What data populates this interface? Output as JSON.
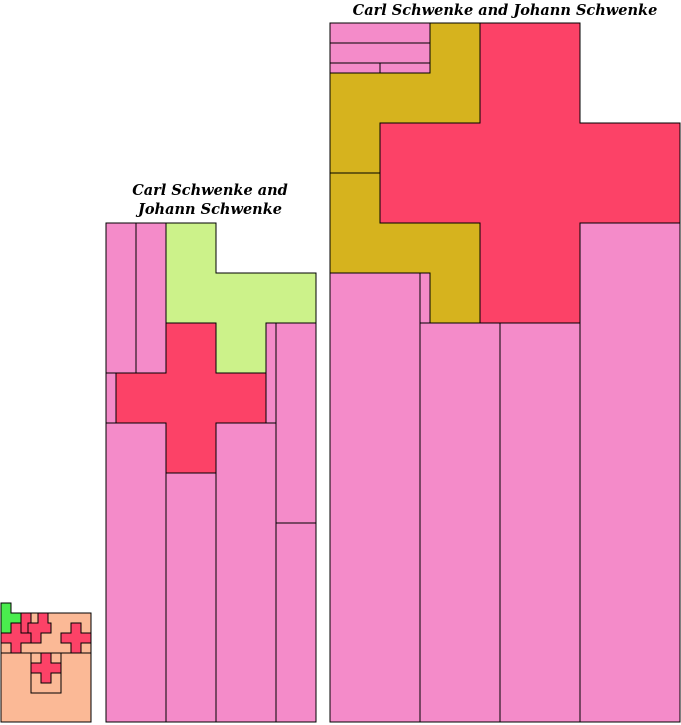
{
  "medium_tiling": {
    "caption_line1": "Carl Schwenke and",
    "caption_line2": "Johann Schwenke"
  },
  "large_tiling": {
    "caption": "Carl Schwenke and Johann Schwenke"
  },
  "colors": {
    "pink": "#f48bc9",
    "red_cross": "#fc4267",
    "light_green": "#ccf28a",
    "green": "#4aec4e",
    "peach": "#fbb996",
    "gold": "#d6b31e"
  }
}
